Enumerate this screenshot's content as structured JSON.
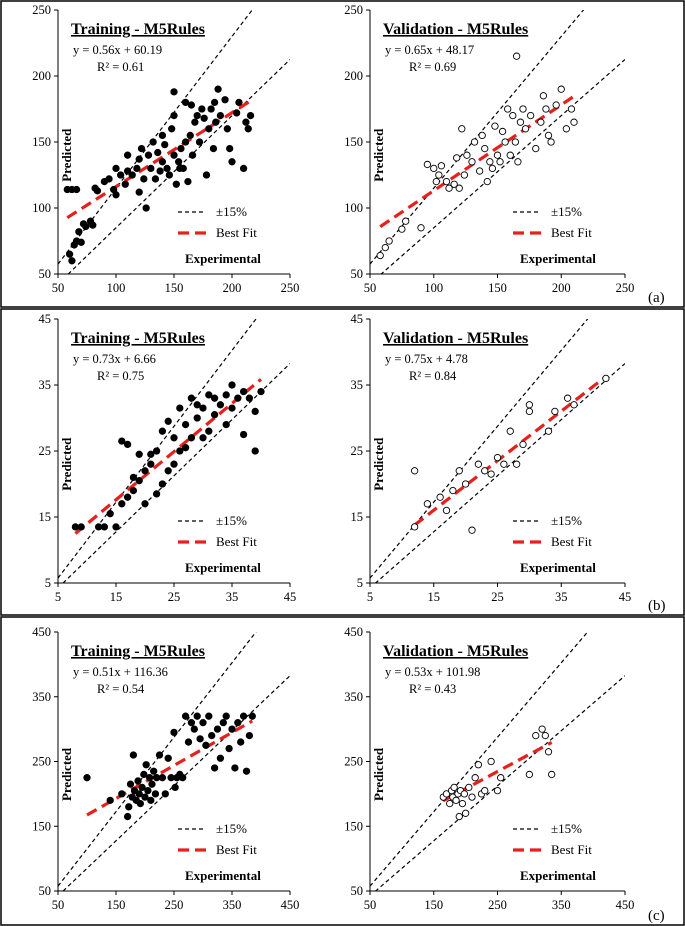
{
  "figure": {
    "panel_labels": [
      "(a)",
      "(b)",
      "(c)"
    ]
  },
  "legend": {
    "band_label": "±15%",
    "fit_label": "Best Fit"
  },
  "axis_labels": {
    "x": "Experimental",
    "y": "Predicted"
  },
  "colors": {
    "band": "#000000",
    "fit": "#e8201c",
    "training_marker": "#000000",
    "validation_marker": "#000000"
  },
  "chart_data": [
    {
      "id": "a-training",
      "row": 0,
      "col": 0,
      "type": "scatter",
      "filled": true,
      "title": "Training - M5Rules",
      "equation": "y = 0.56x + 60.19",
      "r2": "R² = 0.61",
      "xlabel": "Experimental",
      "ylabel": "Predicted",
      "xlim": [
        50,
        250
      ],
      "ylim": [
        50,
        250
      ],
      "xticks": [
        50,
        100,
        150,
        200,
        250
      ],
      "yticks": [
        50,
        100,
        150,
        200,
        250
      ],
      "fit": {
        "slope": 0.56,
        "intercept": 60.19
      },
      "points": [
        [
          58,
          114
        ],
        [
          62,
          114
        ],
        [
          66,
          114
        ],
        [
          60,
          65
        ],
        [
          62,
          60
        ],
        [
          64,
          72
        ],
        [
          66,
          75
        ],
        [
          68,
          82
        ],
        [
          70,
          74
        ],
        [
          72,
          88
        ],
        [
          74,
          86
        ],
        [
          78,
          90
        ],
        [
          80,
          87
        ],
        [
          82,
          115
        ],
        [
          84,
          113
        ],
        [
          90,
          120
        ],
        [
          94,
          122
        ],
        [
          98,
          114
        ],
        [
          100,
          130
        ],
        [
          100,
          110
        ],
        [
          104,
          125
        ],
        [
          108,
          118
        ],
        [
          110,
          128
        ],
        [
          110,
          140
        ],
        [
          114,
          125
        ],
        [
          118,
          130
        ],
        [
          120,
          137
        ],
        [
          120,
          112
        ],
        [
          122,
          145
        ],
        [
          124,
          122
        ],
        [
          126,
          100
        ],
        [
          128,
          140
        ],
        [
          130,
          130
        ],
        [
          132,
          150
        ],
        [
          134,
          122
        ],
        [
          136,
          142
        ],
        [
          138,
          128
        ],
        [
          140,
          135
        ],
        [
          140,
          155
        ],
        [
          142,
          148
        ],
        [
          144,
          130
        ],
        [
          146,
          125
        ],
        [
          148,
          160
        ],
        [
          150,
          140
        ],
        [
          150,
          170
        ],
        [
          152,
          118
        ],
        [
          154,
          135
        ],
        [
          156,
          145
        ],
        [
          158,
          130
        ],
        [
          160,
          150
        ],
        [
          160,
          180
        ],
        [
          162,
          120
        ],
        [
          164,
          155
        ],
        [
          166,
          140
        ],
        [
          168,
          165
        ],
        [
          170,
          170
        ],
        [
          172,
          150
        ],
        [
          174,
          175
        ],
        [
          176,
          168
        ],
        [
          178,
          125
        ],
        [
          180,
          160
        ],
        [
          182,
          175
        ],
        [
          184,
          145
        ],
        [
          186,
          165
        ],
        [
          188,
          190
        ],
        [
          190,
          170
        ],
        [
          194,
          182
        ],
        [
          196,
          160
        ],
        [
          198,
          145
        ],
        [
          200,
          135
        ],
        [
          204,
          172
        ],
        [
          206,
          180
        ],
        [
          210,
          130
        ],
        [
          212,
          165
        ],
        [
          214,
          160
        ],
        [
          216,
          170
        ],
        [
          150,
          188
        ],
        [
          155,
          130
        ],
        [
          165,
          178
        ],
        [
          185,
          180
        ]
      ]
    },
    {
      "id": "a-validation",
      "row": 0,
      "col": 1,
      "type": "scatter",
      "filled": false,
      "title": "Validation - M5Rules",
      "equation": "y = 0.65x + 48.17",
      "r2": "R² = 0.69",
      "xlabel": "Experimental",
      "ylabel": "Predicted",
      "xlim": [
        50,
        250
      ],
      "ylim": [
        50,
        250
      ],
      "xticks": [
        50,
        100,
        150,
        200,
        250
      ],
      "yticks": [
        50,
        100,
        150,
        200,
        250
      ],
      "fit": {
        "slope": 0.65,
        "intercept": 48.17
      },
      "points": [
        [
          58,
          64
        ],
        [
          62,
          70
        ],
        [
          65,
          75
        ],
        [
          75,
          84
        ],
        [
          78,
          90
        ],
        [
          90,
          85
        ],
        [
          95,
          133
        ],
        [
          100,
          130
        ],
        [
          102,
          120
        ],
        [
          104,
          125
        ],
        [
          106,
          132
        ],
        [
          110,
          120
        ],
        [
          112,
          115
        ],
        [
          116,
          118
        ],
        [
          118,
          138
        ],
        [
          120,
          115
        ],
        [
          122,
          160
        ],
        [
          124,
          125
        ],
        [
          126,
          140
        ],
        [
          130,
          135
        ],
        [
          132,
          150
        ],
        [
          136,
          128
        ],
        [
          138,
          155
        ],
        [
          140,
          145
        ],
        [
          142,
          120
        ],
        [
          144,
          135
        ],
        [
          146,
          130
        ],
        [
          148,
          162
        ],
        [
          150,
          140
        ],
        [
          152,
          135
        ],
        [
          154,
          158
        ],
        [
          156,
          150
        ],
        [
          158,
          175
        ],
        [
          160,
          140
        ],
        [
          162,
          170
        ],
        [
          164,
          150
        ],
        [
          166,
          135
        ],
        [
          168,
          165
        ],
        [
          170,
          175
        ],
        [
          172,
          160
        ],
        [
          176,
          170
        ],
        [
          180,
          145
        ],
        [
          184,
          165
        ],
        [
          186,
          185
        ],
        [
          188,
          175
        ],
        [
          190,
          155
        ],
        [
          192,
          150
        ],
        [
          196,
          178
        ],
        [
          200,
          190
        ],
        [
          204,
          160
        ],
        [
          208,
          175
        ],
        [
          210,
          165
        ],
        [
          165,
          215
        ]
      ]
    },
    {
      "id": "b-training",
      "row": 1,
      "col": 0,
      "type": "scatter",
      "filled": true,
      "title": "Training - M5Rules",
      "equation": "y = 0.73x + 6.66",
      "r2": "R² = 0.75",
      "xlabel": "Experimental",
      "ylabel": "Predicted",
      "xlim": [
        5,
        45
      ],
      "ylim": [
        5,
        45
      ],
      "xticks": [
        5,
        15,
        25,
        35,
        45
      ],
      "yticks": [
        5,
        15,
        25,
        35,
        45
      ],
      "fit": {
        "slope": 0.73,
        "intercept": 6.66
      },
      "points": [
        [
          8,
          13.5
        ],
        [
          9,
          13.5
        ],
        [
          12,
          13.5
        ],
        [
          13,
          13.5
        ],
        [
          14,
          15.5
        ],
        [
          15,
          13.5
        ],
        [
          16,
          17
        ],
        [
          16,
          26.5
        ],
        [
          17,
          26
        ],
        [
          17,
          18
        ],
        [
          18,
          19
        ],
        [
          18,
          21
        ],
        [
          19,
          20.5
        ],
        [
          19,
          24.5
        ],
        [
          20,
          17
        ],
        [
          20,
          22
        ],
        [
          21,
          24.5
        ],
        [
          21,
          23
        ],
        [
          22,
          25
        ],
        [
          22,
          18.5
        ],
        [
          23,
          28
        ],
        [
          23,
          20
        ],
        [
          24,
          29.5
        ],
        [
          24,
          22
        ],
        [
          25,
          27
        ],
        [
          25,
          23
        ],
        [
          26,
          31.5
        ],
        [
          26,
          25
        ],
        [
          27,
          25.5
        ],
        [
          27,
          29
        ],
        [
          28,
          33
        ],
        [
          28,
          27
        ],
        [
          29,
          30
        ],
        [
          29,
          32
        ],
        [
          30,
          31.5
        ],
        [
          30,
          27
        ],
        [
          31,
          33.5
        ],
        [
          31,
          28
        ],
        [
          32,
          30.5
        ],
        [
          32,
          33
        ],
        [
          33,
          32
        ],
        [
          34,
          33.5
        ],
        [
          34,
          29
        ],
        [
          35,
          35
        ],
        [
          35,
          31.5
        ],
        [
          36,
          33
        ],
        [
          37,
          34
        ],
        [
          37,
          27.5
        ],
        [
          38,
          33
        ],
        [
          39,
          31
        ],
        [
          39,
          25
        ],
        [
          40,
          34
        ]
      ]
    },
    {
      "id": "b-validation",
      "row": 1,
      "col": 1,
      "type": "scatter",
      "filled": false,
      "title": "Validation - M5Rules",
      "equation": "y = 0.75x + 4.78",
      "r2": "R² = 0.84",
      "xlabel": "Experimental",
      "ylabel": "Predicted",
      "xlim": [
        5,
        45
      ],
      "ylim": [
        5,
        45
      ],
      "xticks": [
        5,
        15,
        25,
        35,
        45
      ],
      "yticks": [
        5,
        15,
        25,
        35,
        45
      ],
      "fit": {
        "slope": 0.75,
        "intercept": 4.78
      },
      "points": [
        [
          12,
          13.5
        ],
        [
          12,
          22
        ],
        [
          14,
          17
        ],
        [
          16,
          18
        ],
        [
          17,
          16
        ],
        [
          18,
          19
        ],
        [
          19,
          22
        ],
        [
          20,
          20
        ],
        [
          21,
          13
        ],
        [
          22,
          23
        ],
        [
          23,
          22
        ],
        [
          24,
          21.5
        ],
        [
          25,
          24
        ],
        [
          26,
          23
        ],
        [
          27,
          28
        ],
        [
          28,
          23
        ],
        [
          29,
          26
        ],
        [
          30,
          31
        ],
        [
          30,
          32
        ],
        [
          33,
          28
        ],
        [
          34,
          31
        ],
        [
          36,
          33
        ],
        [
          37,
          32
        ],
        [
          42,
          36
        ]
      ]
    },
    {
      "id": "c-training",
      "row": 2,
      "col": 0,
      "type": "scatter",
      "filled": true,
      "title": "Training - M5Rules",
      "equation": "y = 0.51x + 116.36",
      "r2": "R² = 0.54",
      "xlabel": "Experimental",
      "ylabel": "Predicted",
      "xlim": [
        50,
        450
      ],
      "ylim": [
        50,
        450
      ],
      "xticks": [
        50,
        150,
        250,
        350,
        450
      ],
      "yticks": [
        50,
        150,
        250,
        350,
        450
      ],
      "fit": {
        "slope": 0.51,
        "intercept": 116.36
      },
      "points": [
        [
          100,
          225
        ],
        [
          140,
          190
        ],
        [
          160,
          200
        ],
        [
          170,
          165
        ],
        [
          172,
          180
        ],
        [
          175,
          215
        ],
        [
          178,
          195
        ],
        [
          180,
          260
        ],
        [
          182,
          205
        ],
        [
          185,
          190
        ],
        [
          188,
          220
        ],
        [
          190,
          200
        ],
        [
          192,
          185
        ],
        [
          195,
          210
        ],
        [
          198,
          230
        ],
        [
          200,
          195
        ],
        [
          202,
          245
        ],
        [
          205,
          205
        ],
        [
          208,
          225
        ],
        [
          210,
          190
        ],
        [
          212,
          215
        ],
        [
          215,
          235
        ],
        [
          218,
          200
        ],
        [
          220,
          225
        ],
        [
          225,
          260
        ],
        [
          230,
          225
        ],
        [
          235,
          200
        ],
        [
          240,
          255
        ],
        [
          245,
          225
        ],
        [
          250,
          295
        ],
        [
          252,
          210
        ],
        [
          255,
          225
        ],
        [
          260,
          230
        ],
        [
          265,
          225
        ],
        [
          270,
          320
        ],
        [
          275,
          280
        ],
        [
          280,
          310
        ],
        [
          285,
          300
        ],
        [
          290,
          320
        ],
        [
          295,
          285
        ],
        [
          300,
          310
        ],
        [
          305,
          275
        ],
        [
          310,
          320
        ],
        [
          315,
          290
        ],
        [
          320,
          240
        ],
        [
          325,
          300
        ],
        [
          330,
          255
        ],
        [
          335,
          310
        ],
        [
          340,
          320
        ],
        [
          345,
          270
        ],
        [
          350,
          300
        ],
        [
          355,
          240
        ],
        [
          360,
          310
        ],
        [
          365,
          280
        ],
        [
          370,
          320
        ],
        [
          375,
          235
        ],
        [
          380,
          290
        ],
        [
          385,
          320
        ]
      ]
    },
    {
      "id": "c-validation",
      "row": 2,
      "col": 1,
      "type": "scatter",
      "filled": false,
      "title": "Validation - M5Rules",
      "equation": "y = 0.53x + 101.98",
      "r2": "R² = 0.43",
      "xlabel": "Experimental",
      "ylabel": "Predicted",
      "xlim": [
        50,
        450
      ],
      "ylim": [
        50,
        450
      ],
      "xticks": [
        50,
        150,
        250,
        350,
        450
      ],
      "yticks": [
        50,
        150,
        250,
        350,
        450
      ],
      "fit": {
        "slope": 0.53,
        "intercept": 101.98
      },
      "points": [
        [
          165,
          195
        ],
        [
          170,
          200
        ],
        [
          175,
          185
        ],
        [
          178,
          205
        ],
        [
          180,
          195
        ],
        [
          182,
          210
        ],
        [
          185,
          190
        ],
        [
          188,
          200
        ],
        [
          190,
          165
        ],
        [
          192,
          205
        ],
        [
          195,
          185
        ],
        [
          198,
          200
        ],
        [
          200,
          170
        ],
        [
          205,
          210
        ],
        [
          210,
          195
        ],
        [
          215,
          225
        ],
        [
          220,
          245
        ],
        [
          225,
          200
        ],
        [
          230,
          205
        ],
        [
          240,
          250
        ],
        [
          250,
          205
        ],
        [
          255,
          225
        ],
        [
          300,
          230
        ],
        [
          310,
          290
        ],
        [
          320,
          300
        ],
        [
          325,
          290
        ],
        [
          330,
          265
        ],
        [
          335,
          230
        ]
      ]
    }
  ]
}
